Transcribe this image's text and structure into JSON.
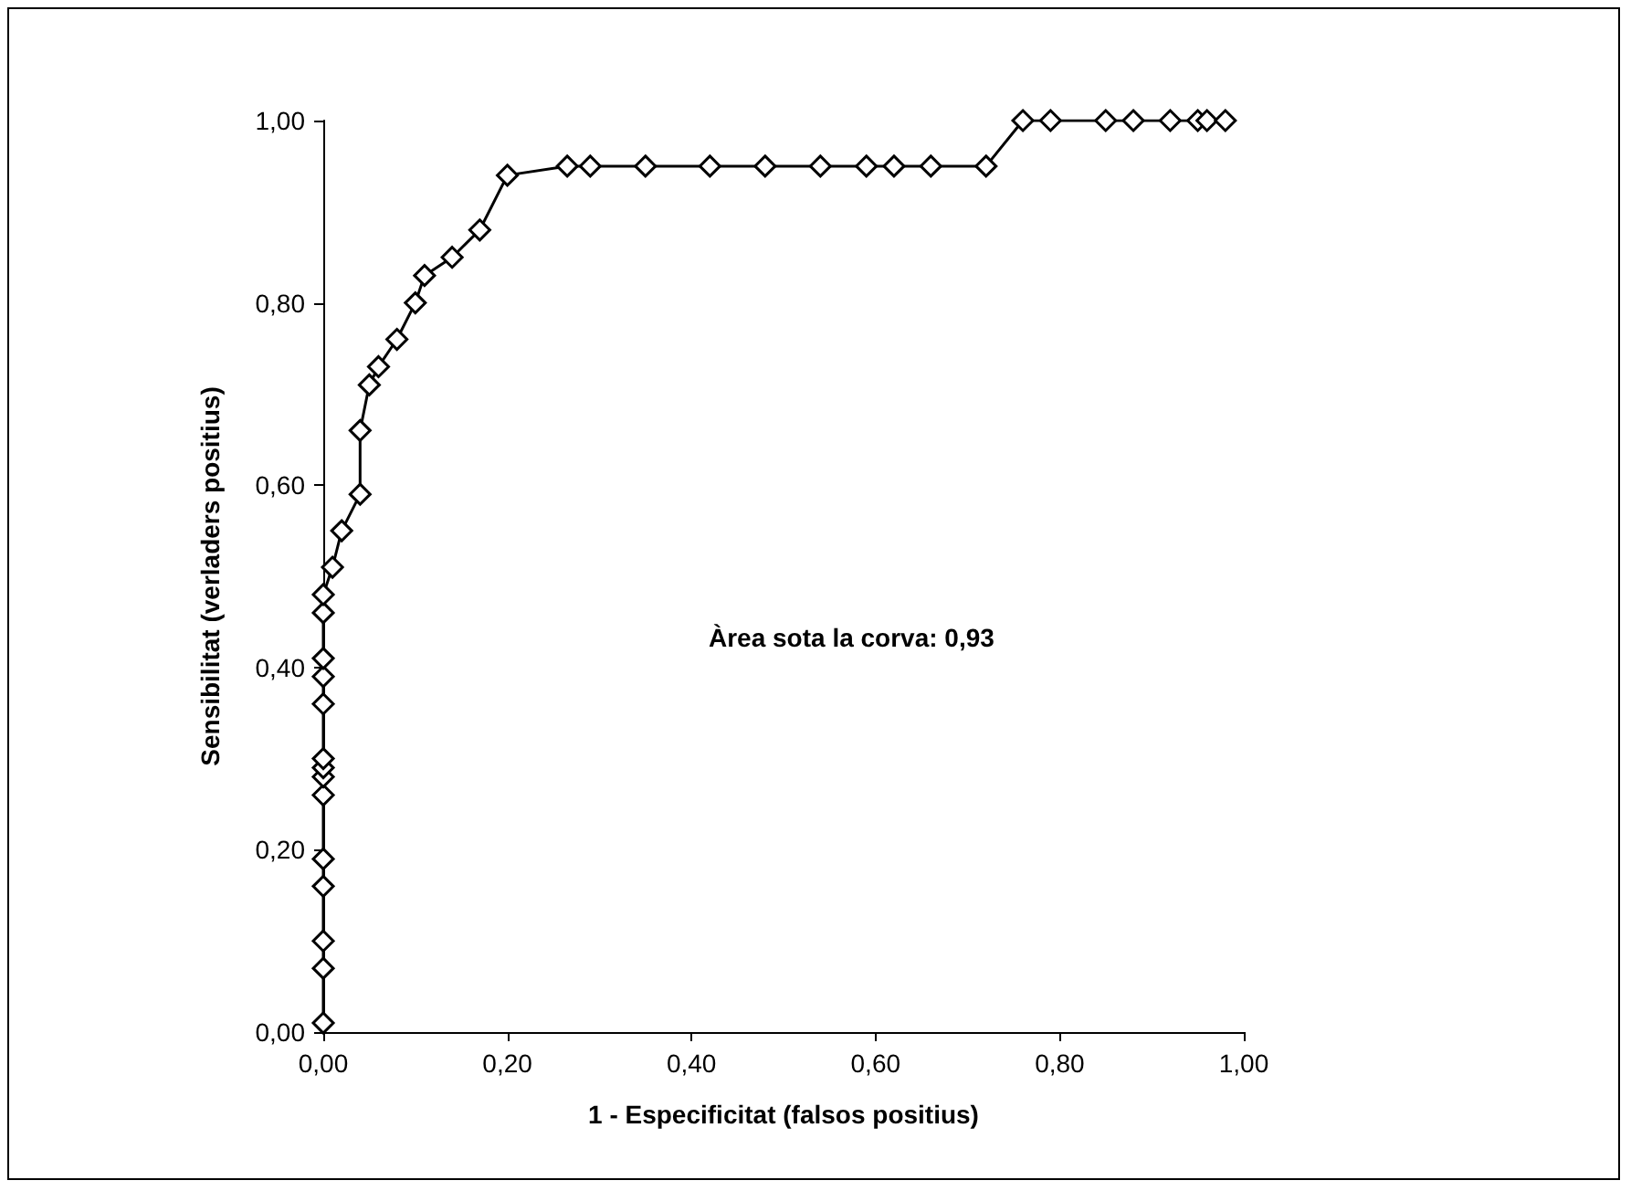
{
  "chart_data": {
    "type": "line",
    "xlabel": "1 - Especificitat (falsos positius)",
    "ylabel": "Sensibilitat (verladers positius)",
    "annotations": [
      "Àrea sota la corva: 0,93"
    ],
    "x": [
      0,
      0,
      0,
      0,
      0,
      0,
      0,
      0,
      0,
      0,
      0,
      0,
      0,
      0,
      0.01,
      0.02,
      0.04,
      0.04,
      0.05,
      0.06,
      0.08,
      0.1,
      0.11,
      0.14,
      0.17,
      0.2,
      0.265,
      0.29,
      0.35,
      0.42,
      0.48,
      0.54,
      0.59,
      0.62,
      0.66,
      0.72,
      0.76,
      0.79,
      0.85,
      0.88,
      0.92,
      0.95,
      0.96,
      0.98
    ],
    "series": [
      {
        "color": "#000000",
        "values": [
          0.01,
          0.07,
          0.1,
          0.16,
          0.19,
          0.26,
          0.28,
          0.29,
          0.3,
          0.36,
          0.39,
          0.41,
          0.46,
          0.48,
          0.51,
          0.55,
          0.59,
          0.66,
          0.71,
          0.73,
          0.76,
          0.8,
          0.83,
          0.85,
          0.88,
          0.94,
          0.95,
          0.95,
          0.95,
          0.95,
          0.95,
          0.95,
          0.95,
          0.95,
          0.95,
          0.95,
          1,
          1,
          1,
          1,
          1,
          1,
          1,
          1
        ]
      }
    ],
    "xlim": [
      0,
      1
    ],
    "ylim": [
      0,
      1
    ],
    "xticks": [
      {
        "value": 0,
        "label": "0,00"
      },
      {
        "value": 0.2,
        "label": "0,20"
      },
      {
        "value": 0.4,
        "label": "0,40"
      },
      {
        "value": 0.6,
        "label": "0,60"
      },
      {
        "value": 0.8,
        "label": "0,80"
      },
      {
        "value": 1,
        "label": "1,00"
      }
    ],
    "yticks": [
      {
        "value": 0,
        "label": "0,00"
      },
      {
        "value": 0.2,
        "label": "0,20"
      },
      {
        "value": 0.4,
        "label": "0,40"
      },
      {
        "value": 0.6,
        "label": "0,60"
      },
      {
        "value": 0.8,
        "label": "0,80"
      },
      {
        "value": 1,
        "label": "1,00"
      }
    ],
    "grid": false,
    "marker": "diamond",
    "line_style": "solid"
  }
}
